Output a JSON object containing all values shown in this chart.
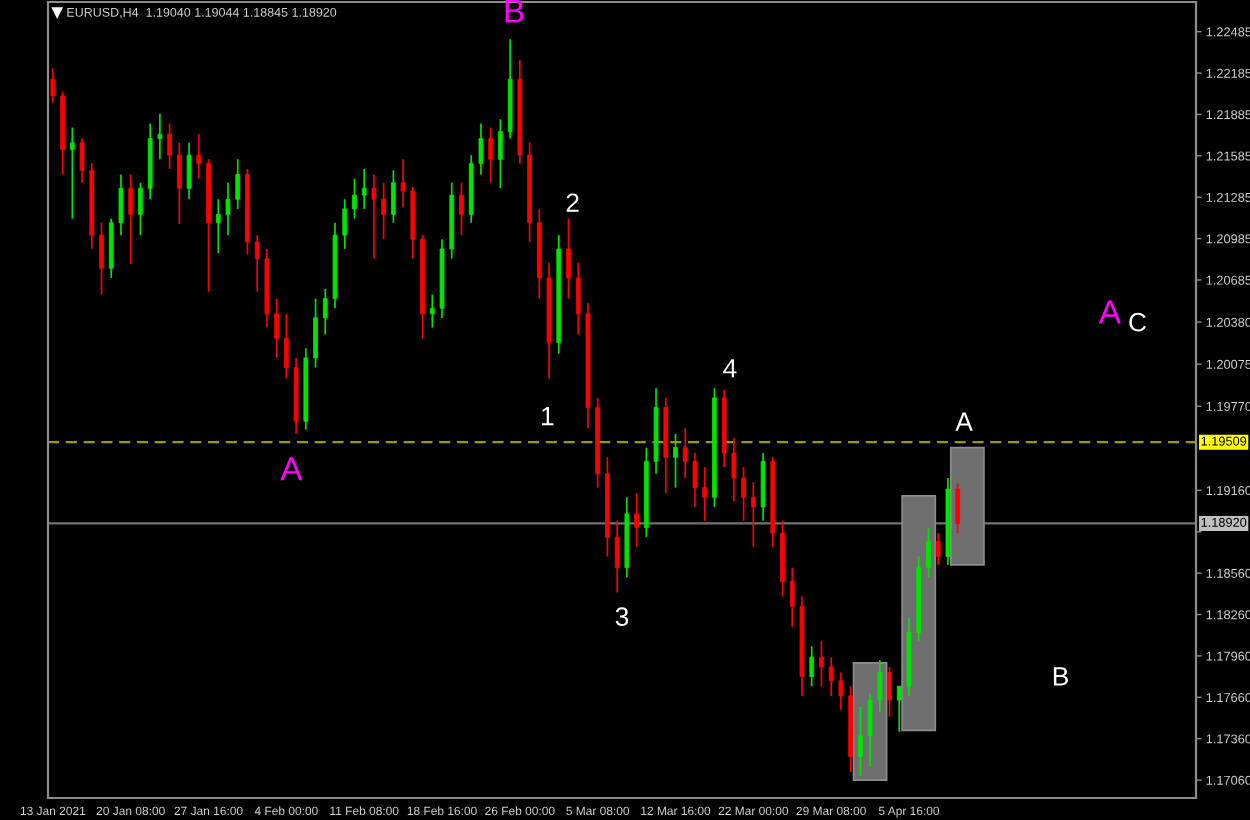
{
  "chart_data": {
    "type": "candlestick",
    "title": "EURUSD,H4  1.19040 1.19044 1.18845 1.18920",
    "categories": [
      "13 Jan 2021",
      null,
      null,
      null,
      null,
      null,
      null,
      null,
      "20 Jan 08:00",
      null,
      null,
      null,
      null,
      null,
      null,
      null,
      "27 Jan 16:00",
      null,
      null,
      null,
      null,
      null,
      null,
      null,
      "4 Feb 00:00",
      null,
      null,
      null,
      null,
      null,
      null,
      null,
      "11 Feb 08:00",
      null,
      null,
      null,
      null,
      null,
      null,
      null,
      "18 Feb 16:00",
      null,
      null,
      null,
      null,
      null,
      null,
      null,
      "26 Feb 00:00",
      null,
      null,
      null,
      null,
      null,
      null,
      null,
      "5 Mar 08:00",
      null,
      null,
      null,
      null,
      null,
      null,
      null,
      "12 Mar 16:00",
      null,
      null,
      null,
      null,
      null,
      null,
      null,
      "22 Mar 00:00",
      null,
      null,
      null,
      null,
      null,
      null,
      null,
      "29 Mar 08:00",
      null,
      null,
      null,
      null,
      null,
      null,
      null,
      "5 Apr 16:00",
      null,
      null,
      null,
      null,
      null,
      null,
      null,
      null,
      null,
      null,
      null,
      null,
      null,
      null,
      null,
      null,
      null,
      null,
      null,
      null,
      null,
      null,
      null,
      null,
      null,
      null,
      null,
      null,
      null
    ],
    "ohlc": [
      [
        1.2214,
        1.2222,
        1.2197,
        1.2202
      ],
      [
        1.2202,
        1.2205,
        1.2145,
        1.2163
      ],
      [
        1.2163,
        1.2179,
        1.2113,
        1.2168
      ],
      [
        1.2168,
        1.2171,
        1.2139,
        1.2148
      ],
      [
        1.2148,
        1.2153,
        1.2091,
        1.2101
      ],
      [
        1.2101,
        1.211,
        1.2058,
        1.2077
      ],
      [
        1.2077,
        1.2113,
        1.207,
        1.211
      ],
      [
        1.211,
        1.2145,
        1.2101,
        1.2135
      ],
      [
        1.2135,
        1.2145,
        1.208,
        1.2116
      ],
      [
        1.2116,
        1.2139,
        1.2101,
        1.2135
      ],
      [
        1.2135,
        1.2182,
        1.2127,
        1.2171
      ],
      [
        1.2171,
        1.2189,
        1.2156,
        1.2174
      ],
      [
        1.2174,
        1.2182,
        1.2149,
        1.2159
      ],
      [
        1.2159,
        1.2168,
        1.2109,
        1.2135
      ],
      [
        1.2135,
        1.2168,
        1.2127,
        1.2159
      ],
      [
        1.2159,
        1.2174,
        1.2142,
        1.2153
      ],
      [
        1.2153,
        1.2156,
        1.206,
        1.211
      ],
      [
        1.211,
        1.2127,
        1.2088,
        1.2116
      ],
      [
        1.2116,
        1.2139,
        1.2101,
        1.2127
      ],
      [
        1.2127,
        1.2156,
        1.212,
        1.2145
      ],
      [
        1.2145,
        1.2149,
        1.2087,
        1.2096
      ],
      [
        1.2096,
        1.2101,
        1.206,
        1.2084
      ],
      [
        1.2084,
        1.2091,
        1.2034,
        1.2044
      ],
      [
        1.2044,
        1.2055,
        1.2012,
        1.2026
      ],
      [
        1.2026,
        1.2044,
        1.1997,
        1.2005
      ],
      [
        1.2005,
        1.2012,
        1.1957,
        1.1966
      ],
      [
        1.1966,
        1.2019,
        1.196,
        1.2012
      ],
      [
        1.2012,
        1.2055,
        1.2005,
        1.2041
      ],
      [
        1.2041,
        1.2062,
        1.2029,
        1.2055
      ],
      [
        1.2055,
        1.211,
        1.2048,
        1.2101
      ],
      [
        1.2101,
        1.2127,
        1.2091,
        1.212
      ],
      [
        1.212,
        1.2142,
        1.2113,
        1.213
      ],
      [
        1.213,
        1.2149,
        1.212,
        1.2135
      ],
      [
        1.2135,
        1.2145,
        1.2084,
        1.2127
      ],
      [
        1.2127,
        1.2139,
        1.2098,
        1.2116
      ],
      [
        1.2116,
        1.2148,
        1.211,
        1.2139
      ],
      [
        1.2139,
        1.2156,
        1.2121,
        1.2133
      ],
      [
        1.2133,
        1.2136,
        1.2084,
        1.2098
      ],
      [
        1.2098,
        1.2101,
        1.2026,
        1.2044
      ],
      [
        1.2044,
        1.2058,
        1.2034,
        1.2048
      ],
      [
        1.2048,
        1.2098,
        1.2041,
        1.2091
      ],
      [
        1.2091,
        1.2139,
        1.2084,
        1.213
      ],
      [
        1.213,
        1.2139,
        1.2101,
        1.2116
      ],
      [
        1.2116,
        1.2159,
        1.211,
        1.2153
      ],
      [
        1.2153,
        1.2182,
        1.2145,
        1.2171
      ],
      [
        1.2171,
        1.2179,
        1.2139,
        1.2156
      ],
      [
        1.2156,
        1.2185,
        1.2135,
        1.2176
      ],
      [
        1.2176,
        1.2243,
        1.2171,
        1.2214
      ],
      [
        1.2214,
        1.2228,
        1.2153,
        1.2159
      ],
      [
        1.2159,
        1.2168,
        1.2096,
        1.211
      ],
      [
        1.211,
        1.212,
        1.2055,
        1.207
      ],
      [
        1.207,
        1.2081,
        1.1997,
        1.2023
      ],
      [
        1.2023,
        1.2101,
        1.2015,
        1.2091
      ],
      [
        1.2091,
        1.2113,
        1.2055,
        1.207
      ],
      [
        1.207,
        1.2081,
        1.2029,
        1.2044
      ],
      [
        1.2044,
        1.2052,
        1.1961,
        1.1976
      ],
      [
        1.1976,
        1.1983,
        1.1918,
        1.1928
      ],
      [
        1.1928,
        1.194,
        1.1868,
        1.1882
      ],
      [
        1.1882,
        1.1894,
        1.1842,
        1.186
      ],
      [
        1.186,
        1.1911,
        1.1853,
        1.1899
      ],
      [
        1.1899,
        1.1914,
        1.1875,
        1.1889
      ],
      [
        1.1889,
        1.1947,
        1.1882,
        1.1937
      ],
      [
        1.1937,
        1.199,
        1.1928,
        1.1976
      ],
      [
        1.1976,
        1.1983,
        1.1914,
        1.194
      ],
      [
        1.194,
        1.1957,
        1.1918,
        1.1947
      ],
      [
        1.1947,
        1.1961,
        1.1925,
        1.1937
      ],
      [
        1.1937,
        1.1943,
        1.1904,
        1.1918
      ],
      [
        1.1918,
        1.1933,
        1.1894,
        1.1911
      ],
      [
        1.1911,
        1.199,
        1.1904,
        1.1983
      ],
      [
        1.1983,
        1.1989,
        1.1933,
        1.1943
      ],
      [
        1.1943,
        1.1954,
        1.1908,
        1.1925
      ],
      [
        1.1925,
        1.1933,
        1.1894,
        1.1911
      ],
      [
        1.1911,
        1.1922,
        1.1875,
        1.1904
      ],
      [
        1.1904,
        1.1943,
        1.1894,
        1.1937
      ],
      [
        1.1937,
        1.194,
        1.1875,
        1.1885
      ],
      [
        1.1885,
        1.1894,
        1.1839,
        1.185
      ],
      [
        1.185,
        1.186,
        1.1817,
        1.1832
      ],
      [
        1.1832,
        1.1839,
        1.1767,
        1.1781
      ],
      [
        1.1781,
        1.1803,
        1.1774,
        1.1795
      ],
      [
        1.1795,
        1.1807,
        1.1774,
        1.1788
      ],
      [
        1.1788,
        1.1795,
        1.1767,
        1.1778
      ],
      [
        1.1778,
        1.1784,
        1.1757,
        1.1767
      ],
      [
        1.1767,
        1.1774,
        1.1712,
        1.1723
      ],
      [
        1.1723,
        1.1759,
        1.1709,
        1.1738
      ],
      [
        1.1738,
        1.1769,
        1.1716,
        1.1764
      ],
      [
        1.1764,
        1.1793,
        1.1755,
        1.1784
      ],
      [
        1.1784,
        1.1788,
        1.1752,
        1.1764
      ],
      [
        1.1764,
        1.1774,
        1.1741,
        1.1774
      ],
      [
        1.1774,
        1.1824,
        1.1767,
        1.1813
      ],
      [
        1.1813,
        1.1868,
        1.1807,
        1.186
      ],
      [
        1.186,
        1.1889,
        1.1853,
        1.1879
      ],
      [
        1.1879,
        1.1885,
        1.1862,
        1.1868
      ],
      [
        1.1868,
        1.1925,
        1.1862,
        1.1917
      ],
      [
        1.1917,
        1.1921,
        1.1885,
        1.1892
      ],
      null,
      null,
      null,
      null,
      null,
      null,
      null,
      null,
      null,
      null,
      null,
      null,
      null,
      null,
      null,
      null,
      null,
      null,
      null,
      null,
      null,
      null,
      null,
      null
    ],
    "colors": [
      "#ff0000",
      "#ff0000",
      "#00e600",
      "#ff0000",
      "#ff0000",
      "#ff0000",
      "#00e600",
      "#00e600",
      "#ff0000",
      "#00e600",
      "#00e600",
      "#00e600",
      "#ff0000",
      "#ff0000",
      "#00e600",
      "#ff0000",
      "#ff0000",
      "#00e600",
      "#00e600",
      "#00e600",
      "#ff0000",
      "#ff0000",
      "#ff0000",
      "#ff0000",
      "#ff0000",
      "#ff0000",
      "#00e600",
      "#00e600",
      "#00e600",
      "#00e600",
      "#00e600",
      "#00e600",
      "#00e600",
      "#ff0000",
      "#ff0000",
      "#00e600",
      "#ff0000",
      "#ff0000",
      "#ff0000",
      "#00e600",
      "#00e600",
      "#00e600",
      "#ff0000",
      "#00e600",
      "#00e600",
      "#ff0000",
      "#00e600",
      "#00e600",
      "#ff0000",
      "#ff0000",
      "#ff0000",
      "#ff0000",
      "#00e600",
      "#ff0000",
      "#ff0000",
      "#ff0000",
      "#ff0000",
      "#ff0000",
      "#ff0000",
      "#00e600",
      "#ff0000",
      "#00e600",
      "#00e600",
      "#ff0000",
      "#00e600",
      "#ff0000",
      "#ff0000",
      "#ff0000",
      "#00e600",
      "#ff0000",
      "#ff0000",
      "#ff0000",
      "#ff0000",
      "#00e600",
      "#ff0000",
      "#ff0000",
      "#ff0000",
      "#ff0000",
      "#00e600",
      "#ff0000",
      "#ff0000",
      "#ff0000",
      "#ff0000",
      "#00e600",
      "#00e600",
      "#00e600",
      "#ff0000",
      "#00e600",
      "#00e600",
      "#00e600",
      "#00e600",
      "#ff0000",
      "#00e600",
      "#ff0000",
      null,
      null,
      null,
      null,
      null,
      null,
      null,
      null,
      null,
      null,
      null,
      null,
      null,
      null,
      null,
      null,
      null,
      null,
      null,
      null,
      null,
      null,
      null,
      null
    ],
    "ylim": [
      1.1693,
      1.227
    ],
    "yticks": [
      1.22485,
      1.22185,
      1.21885,
      1.21585,
      1.21285,
      1.20985,
      1.20685,
      {
        "value": 1.2038,
        "label": "1.20380"
      },
      1.20075,
      {
        "value": 1.1977,
        "label": "1.19770"
      },
      {
        "value": 1.1916,
        "label": "1.19160"
      },
      {
        "value": 1.1886,
        "label": null
      },
      {
        "value": 1.1856,
        "label": "1.18560"
      },
      {
        "value": 1.1826,
        "label": "1.18260"
      },
      {
        "value": 1.1796,
        "label": "1.17960"
      },
      {
        "value": 1.1766,
        "label": "1.17660"
      },
      {
        "value": 1.1736,
        "label": "1.17360"
      },
      {
        "value": 1.1706,
        "label": "1.17060"
      }
    ],
    "ref_lines": [
      {
        "axis": "y",
        "value": 1.19509,
        "label": "1.19509",
        "color": "#ffff00",
        "line_style": "dashed"
      },
      {
        "axis": "y",
        "value": 1.1892,
        "label": "1.18920",
        "color": "#c0c0c0",
        "line_style": "solid"
      }
    ],
    "annotations": [
      "B",
      "A",
      "2",
      "1",
      "3",
      "4",
      "A",
      "B",
      "A",
      "C"
    ]
  }
}
